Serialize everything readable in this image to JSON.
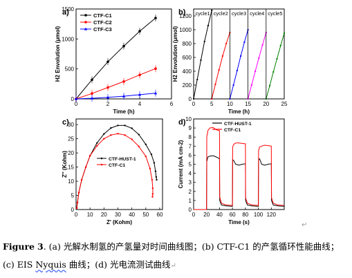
{
  "chart_data": [
    {
      "panel": "a)",
      "type": "line",
      "xlabel": "Time (h)",
      "ylabel": "H2 Envolution (μmol)",
      "xlim": [
        0,
        6
      ],
      "ylim": [
        0,
        1500
      ],
      "xticks": [
        0,
        2,
        4,
        6
      ],
      "yticks": [
        0,
        500,
        1000,
        1500
      ],
      "legend": "top-left",
      "series": [
        {
          "name": "CTF-C1",
          "color": "#000000",
          "marker": "circle",
          "x": [
            0,
            1,
            2,
            3,
            4,
            5
          ],
          "y": [
            0,
            320,
            620,
            880,
            1130,
            1350
          ]
        },
        {
          "name": "CTF-C2",
          "color": "#ff0000",
          "marker": "circle",
          "x": [
            0,
            1,
            2,
            3,
            4,
            5
          ],
          "y": [
            0,
            90,
            190,
            290,
            400,
            505
          ]
        },
        {
          "name": "CTF-C3",
          "color": "#0000ff",
          "marker": "triangle",
          "x": [
            0,
            1,
            2,
            3,
            4,
            5
          ],
          "y": [
            0,
            10,
            25,
            45,
            70,
            95
          ]
        }
      ]
    },
    {
      "panel": "b)",
      "type": "line",
      "xlabel": "Time (h)",
      "ylabel": "H2 Envolution (μmol)",
      "xlim": [
        0,
        25
      ],
      "ylim": [
        0,
        1300
      ],
      "xticks": [
        0,
        5,
        10,
        15,
        20,
        25
      ],
      "yticks": [
        0,
        200,
        400,
        600,
        800,
        1000,
        1200
      ],
      "cycle_labels": [
        "cycle1",
        "cycle2",
        "cycle3",
        "cycle4",
        "cycle5"
      ],
      "series": [
        {
          "name": "cycle1",
          "color": "#000000",
          "x": [
            0,
            1,
            2,
            3,
            4,
            5
          ],
          "y": [
            0,
            280,
            560,
            830,
            1060,
            1280
          ]
        },
        {
          "name": "cycle2",
          "color": "#ff0000",
          "x": [
            5,
            6,
            7,
            8,
            9,
            10
          ],
          "y": [
            0,
            210,
            420,
            620,
            800,
            960
          ]
        },
        {
          "name": "cycle3",
          "color": "#0000ff",
          "x": [
            10,
            11,
            12,
            13,
            14,
            15
          ],
          "y": [
            0,
            200,
            410,
            620,
            820,
            1000
          ]
        },
        {
          "name": "cycle4",
          "color": "#ff00ff",
          "x": [
            15,
            16,
            17,
            18,
            19,
            20
          ],
          "y": [
            0,
            200,
            400,
            590,
            780,
            960
          ]
        },
        {
          "name": "cycle5",
          "color": "#008000",
          "x": [
            20,
            21,
            22,
            23,
            24,
            25
          ],
          "y": [
            0,
            190,
            390,
            580,
            770,
            950
          ]
        }
      ]
    },
    {
      "panel": "c)",
      "type": "line",
      "xlabel": "Z' (Kohm)",
      "ylabel": "Z'' (Kohm)",
      "xlim": [
        0,
        62
      ],
      "ylim": [
        0,
        32
      ],
      "xticks": [
        0,
        10,
        20,
        30,
        40,
        50,
        60
      ],
      "yticks": [
        0,
        5,
        10,
        15,
        20,
        25,
        30
      ],
      "legend": "left",
      "series": [
        {
          "name": "CTF-HUST-1",
          "color": "#000000",
          "x": [
            0.5,
            1,
            2,
            4,
            7,
            10,
            15,
            20,
            25,
            30,
            35,
            40,
            45,
            50,
            54,
            56,
            57,
            57.5,
            57.8
          ],
          "y": [
            0.5,
            2.5,
            6,
            10.5,
            15,
            19,
            23.5,
            26.7,
            28.8,
            29.7,
            29.7,
            28.7,
            26.5,
            23,
            19.5,
            16.5,
            13.5,
            11.5,
            10.5
          ]
        },
        {
          "name": "CTF-C1",
          "color": "#ff0000",
          "x": [
            0.5,
            1,
            2,
            4,
            7,
            10,
            15,
            20,
            25,
            30,
            35,
            40,
            45,
            50,
            53,
            54.5,
            55,
            55,
            54.8
          ],
          "y": [
            0.5,
            2.5,
            6,
            10.5,
            15,
            19,
            22.5,
            25,
            26.3,
            26.8,
            26.3,
            24.8,
            22.3,
            18.8,
            14.5,
            10.5,
            7.5,
            5.5,
            4.5
          ]
        }
      ]
    },
    {
      "panel": "d)",
      "type": "line",
      "xlabel": "Time (s)",
      "ylabel": "Current (mA cm-2)",
      "xlim": [
        0,
        140
      ],
      "ylim": [
        0,
        10
      ],
      "xticks": [
        0,
        20,
        40,
        60,
        80,
        100,
        120
      ],
      "yticks": [
        0,
        1,
        2,
        3,
        4,
        5,
        6,
        7,
        8,
        9,
        10
      ],
      "legend": "top-left",
      "series": [
        {
          "name": "CTF-HUST-1",
          "color": "#000000",
          "x": [
            0,
            20,
            20.3,
            22,
            25,
            30,
            35,
            40,
            40.3,
            43,
            50,
            60,
            60.3,
            62,
            65,
            70,
            75,
            80,
            80.3,
            83,
            90,
            100,
            100.3,
            102,
            105,
            110,
            115,
            120,
            120.3,
            123,
            130,
            140
          ],
          "y": [
            0,
            0,
            5.3,
            5.8,
            5.9,
            5.95,
            5.8,
            5.6,
            1.0,
            0.5,
            0.4,
            0.35,
            5.5,
            5.4,
            5.0,
            4.9,
            5.0,
            5.05,
            1.0,
            0.5,
            0.4,
            0.35,
            5.5,
            5.6,
            5.0,
            4.9,
            5.0,
            5.05,
            1.0,
            0.5,
            0.4,
            0.35
          ]
        },
        {
          "name": "CTF-C1",
          "color": "#ff0000",
          "x": [
            0,
            20,
            20.3,
            22,
            25,
            30,
            35,
            40,
            40.3,
            43,
            50,
            60,
            60.3,
            62,
            65,
            70,
            75,
            80,
            80.3,
            83,
            90,
            100,
            100.3,
            102,
            105,
            110,
            115,
            120,
            120.3,
            123,
            130,
            140
          ],
          "y": [
            0,
            0,
            8.0,
            8.7,
            9.0,
            9.05,
            8.8,
            8.7,
            1.4,
            0.7,
            0.5,
            0.45,
            6.9,
            7.2,
            7.35,
            7.35,
            7.3,
            7.25,
            1.3,
            0.7,
            0.5,
            0.45,
            6.5,
            6.9,
            7.0,
            7.1,
            7.05,
            7.0,
            1.3,
            0.7,
            0.5,
            0.45
          ]
        }
      ]
    }
  ],
  "caption": {
    "label": "Figure",
    "number": "3",
    "line1_a": ". (a)",
    "line1_text": " 光解水制氢的产氢量对时间曲线图；(b) CTF-C1 的产氢循环性能曲线；",
    "line2": "(c) EIS ",
    "nyquist": "Nyquis",
    "line2_rest": " 曲线；(d) 光电流测试曲线",
    "return_mark": "↵"
  }
}
